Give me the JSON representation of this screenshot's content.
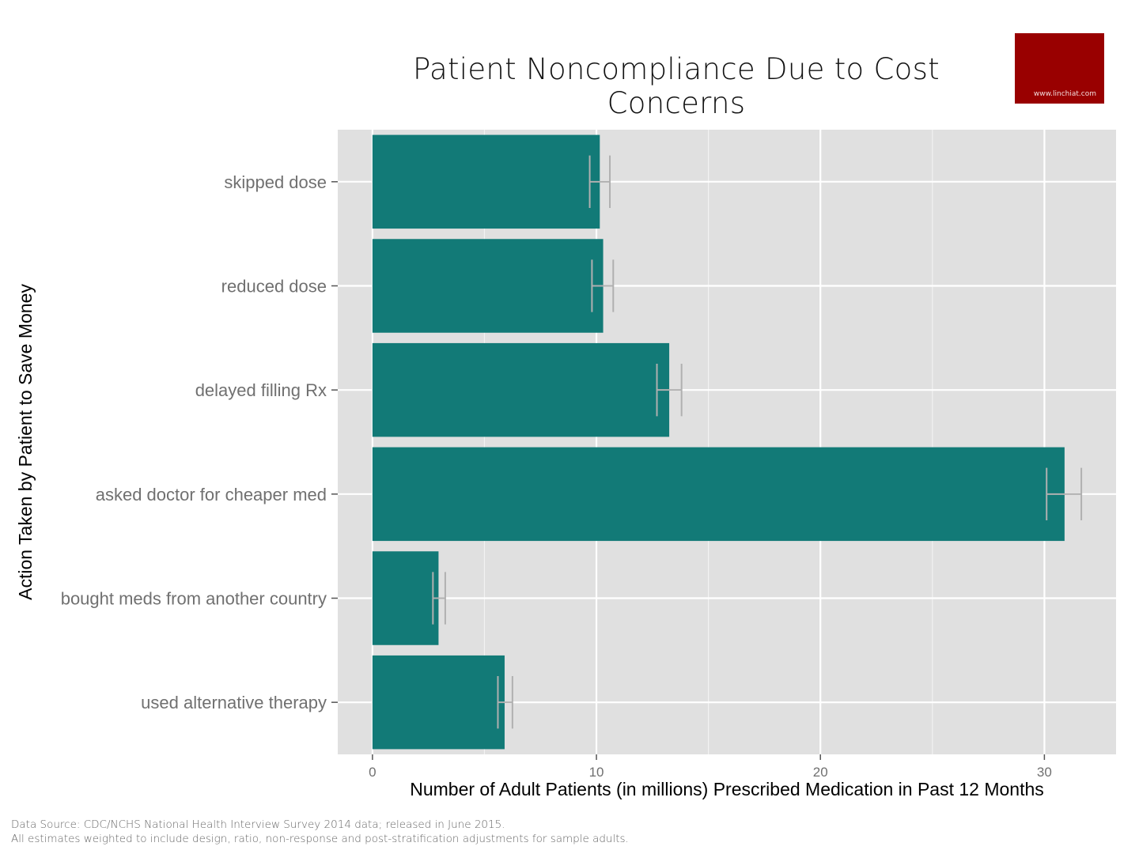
{
  "chart_data": {
    "type": "bar",
    "orientation": "horizontal",
    "title": "Patient Noncompliance Due to Cost Concerns",
    "xlabel": "Number of Adult Patients (in millions) Prescribed Medication in Past 12 Months",
    "ylabel": "Action Taken by Patient to Save Money",
    "categories": [
      "skipped dose",
      "reduced dose",
      "delayed filling Rx",
      "asked doctor for cheaper med",
      "bought meds from another country",
      "used alternative therapy"
    ],
    "values": [
      10.15,
      10.3,
      13.25,
      30.9,
      2.95,
      5.9
    ],
    "error_bars": [
      [
        9.7,
        10.6
      ],
      [
        9.8,
        10.75
      ],
      [
        12.7,
        13.8
      ],
      [
        30.1,
        31.65
      ],
      [
        2.7,
        3.25
      ],
      [
        5.6,
        6.25
      ]
    ],
    "xlim": [
      -1.55,
      33.2
    ],
    "xticks": [
      0,
      10,
      20,
      30
    ],
    "xtick_labels": [
      "0",
      "10",
      "20",
      "30"
    ],
    "grid": true,
    "colors": {
      "bar": "#127a77",
      "panel": "#e0e0e0",
      "grid": "#ffffff",
      "error_bar": "#b0b0b0",
      "axis_text": "#707070",
      "axis_title": "#000000"
    }
  },
  "branding": {
    "site": "www.linchiat.com",
    "color": "#990000"
  },
  "footnotes": [
    "Data Source: CDC/NCHS National Health Interview Survey 2014 data; released in June 2015.",
    "All estimates weighted to include design, ratio, non-response and post-stratification adjustments for sample adults."
  ]
}
